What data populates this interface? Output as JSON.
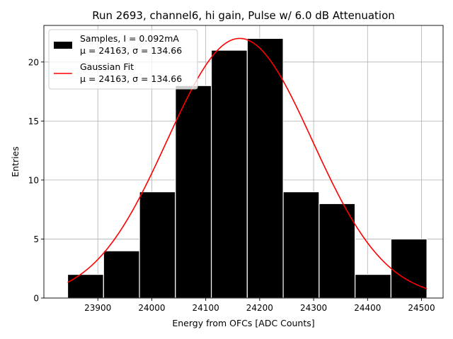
{
  "chart_data": {
    "type": "bar",
    "title": "Run 2693, channel6, hi gain, Pulse w/ 6.0 dB Attenuation",
    "xlabel": "Energy from OFCs [ADC Counts]",
    "ylabel": "Entries",
    "xlim": [
      23800,
      24540
    ],
    "ylim": [
      0,
      23.1
    ],
    "grid": true,
    "x_ticks": [
      23900,
      24000,
      24100,
      24200,
      24300,
      24400,
      24500
    ],
    "y_ticks": [
      0,
      5,
      10,
      15,
      20
    ],
    "bin_edges": [
      23844,
      23910.6,
      23977.2,
      24043.8,
      24110.4,
      24177,
      24243.6,
      24310.2,
      24376.8,
      24443.4,
      24510
    ],
    "counts": [
      2,
      4,
      9,
      18,
      21,
      22,
      9,
      8,
      2,
      5
    ],
    "fit": {
      "type": "gaussian",
      "amplitude": 22.0,
      "mu": 24163,
      "sigma": 134.66,
      "x_range": [
        23844,
        24510
      ]
    },
    "legend": {
      "placement": "top-left",
      "entries": [
        {
          "line1": "Samples, I = 0.092mA",
          "line2": "μ = 24163, σ = 134.66",
          "color": "#000000"
        },
        {
          "line1": "Gaussian Fit",
          "line2": "μ = 24163, σ = 134.66",
          "color": "#ff0000"
        }
      ]
    },
    "colors": {
      "bars": "#000000",
      "bar_edge": "#ffffff",
      "fit": "#ff0000",
      "grid": "#b0b0b0"
    }
  }
}
